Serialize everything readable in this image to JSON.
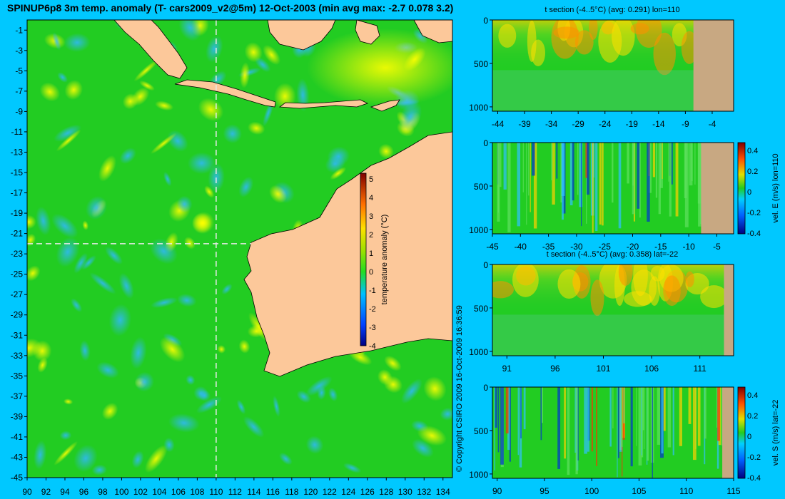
{
  "title": "SPINUP6p8 3m temp. anomaly (T- cars2009_v2@5m) 12-Oct-2003 (min avg max: -2.7 0.078 3.2)",
  "copyright": "© Copyright CSIRO 2009  16-Oct-2009 16:36:59",
  "colors": {
    "background": "#00c8ff",
    "land": "#fcc89a",
    "panel_land": "#c8a882",
    "ocean_base": "#22cc22",
    "guide": "#e8e8e8"
  },
  "chart_data": [
    {
      "type": "heatmap",
      "name": "map",
      "xlim": [
        90,
        135
      ],
      "ylim": [
        -45,
        0
      ],
      "x_ticks": [
        90,
        92,
        94,
        96,
        98,
        100,
        102,
        104,
        106,
        108,
        110,
        112,
        114,
        116,
        118,
        120,
        122,
        124,
        126,
        128,
        130,
        132,
        134
      ],
      "y_ticks": [
        -1,
        -3,
        -5,
        -7,
        -9,
        -11,
        -13,
        -15,
        -17,
        -19,
        -21,
        -23,
        -25,
        -27,
        -29,
        -31,
        -33,
        -35,
        -37,
        -39,
        -41,
        -43,
        -45
      ],
      "guide_lon": 110,
      "guide_lat": -22,
      "colorbar": {
        "label": "temperature anomaly (°C)",
        "ticks": [
          5,
          4,
          3,
          2,
          1,
          0,
          -1,
          -2,
          -3,
          -4
        ],
        "range": [
          -4,
          5.3
        ]
      }
    },
    {
      "type": "heatmap",
      "name": "t-section-lon",
      "title": "t section (-4..5°C) (avg: 0.291) lon=110",
      "xlim": [
        -45,
        0
      ],
      "ylim": [
        1050,
        0
      ],
      "x_ticks": [
        "-44",
        "-39",
        "-34",
        "-29",
        "-24",
        "-19",
        "-14",
        "-9",
        "-4"
      ],
      "y_ticks": [
        "0",
        "500",
        "1000"
      ],
      "land_from": -7.5
    },
    {
      "type": "heatmap",
      "name": "vel-e-section",
      "title": "",
      "xlim": [
        -45,
        -2
      ],
      "ylim": [
        1050,
        0
      ],
      "x_ticks": [
        "-45",
        "-40",
        "-35",
        "-30",
        "-25",
        "-20",
        "-15",
        "-10",
        "-5"
      ],
      "y_ticks": [
        "0",
        "500",
        "1000"
      ],
      "land_from": -7.8,
      "colorbar": {
        "label": "vel. E (m/s) lon=110",
        "ticks": [
          "0.4",
          "0.2",
          "0",
          "-0.2",
          "-0.4"
        ]
      }
    },
    {
      "type": "heatmap",
      "name": "t-section-lat",
      "title": "t section (-4..5°C) (avg: 0.358) lat=-22",
      "xlim": [
        89.5,
        114.5
      ],
      "ylim": [
        1050,
        0
      ],
      "x_ticks": [
        "91",
        "96",
        "101",
        "106",
        "111"
      ],
      "y_ticks": [
        "0",
        "500",
        "1000"
      ],
      "land_from": 113.5
    },
    {
      "type": "heatmap",
      "name": "vel-s-section",
      "title": "",
      "xlim": [
        89.5,
        115
      ],
      "ylim": [
        1050,
        0
      ],
      "x_ticks": [
        "90",
        "95",
        "100",
        "105",
        "110",
        "115"
      ],
      "y_ticks": [
        "0",
        "500",
        "1000"
      ],
      "land_from": 113.8,
      "colorbar": {
        "label": "vel. S (m/s) lat=-22",
        "ticks": [
          "0.4",
          "0.2",
          "0",
          "-0.2",
          "-0.4"
        ]
      }
    }
  ]
}
